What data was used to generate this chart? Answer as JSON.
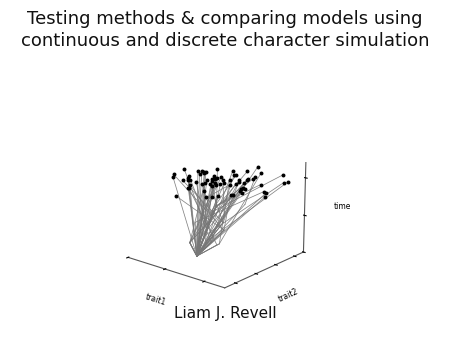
{
  "title": "Testing methods & comparing models using\ncontinuous and discrete character simulation",
  "subtitle": "Liam J. Revell",
  "title_fontsize": 13,
  "subtitle_fontsize": 11,
  "background_color": "#ffffff",
  "xlabel": "trait1",
  "ylabel": "trait2",
  "zlabel": "time",
  "line_color": "#777777",
  "point_color": "#000000",
  "point_size": 8,
  "seed": 42,
  "n_tips": 70,
  "n_internal": 25,
  "elev": 18,
  "azim": -50
}
